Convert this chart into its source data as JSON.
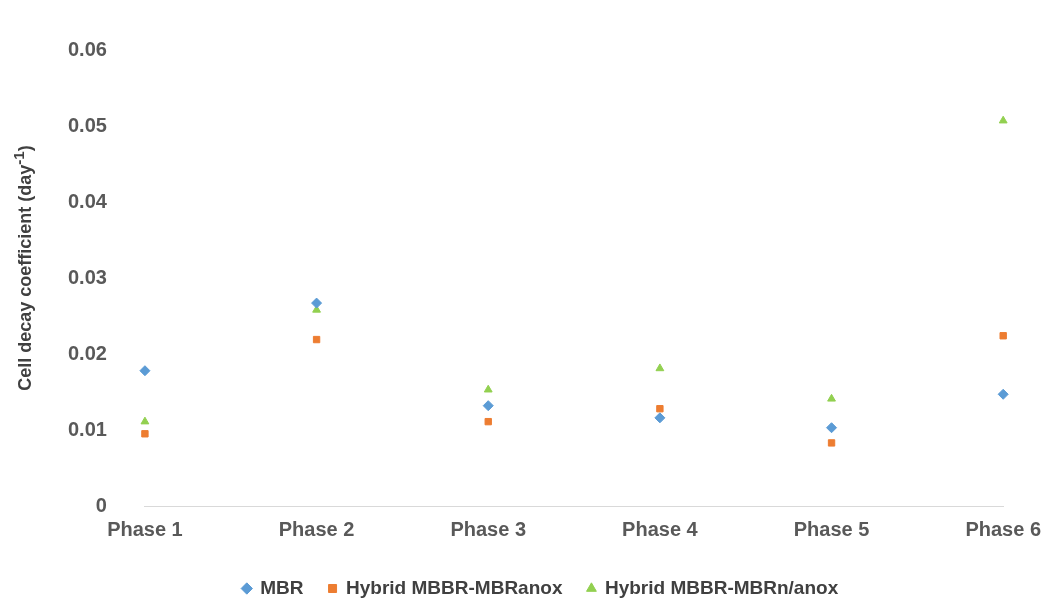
{
  "chart_data": {
    "type": "scatter",
    "ylabel": "Cell decay coefficient (day$^{-1}$)",
    "categories": [
      "Phase 1",
      "Phase 2",
      "Phase 3",
      "Phase 4",
      "Phase 5",
      "Phase 6"
    ],
    "series": [
      {
        "name": "MBR",
        "color": "#5b9bd5",
        "marker": "diamond",
        "values": [
          0.0178,
          0.0267,
          0.0132,
          0.0116,
          0.0103,
          0.0147
        ]
      },
      {
        "name": "Hybrid MBBR-MBRanox",
        "color": "#ed7d31",
        "marker": "square",
        "values": [
          0.0095,
          0.0219,
          0.0111,
          0.0128,
          0.0083,
          0.0224
        ]
      },
      {
        "name": "Hybrid MBBR-MBRn/anox",
        "color": "#92d050",
        "marker": "triangle",
        "values": [
          0.0111,
          0.0258,
          0.0153,
          0.0181,
          0.0141,
          0.0507
        ]
      }
    ],
    "ylim": [
      0,
      0.06
    ],
    "yticks": [
      0,
      0.01,
      0.02,
      0.03,
      0.04,
      0.05,
      0.06
    ],
    "grid": false,
    "legend": "bottom"
  }
}
